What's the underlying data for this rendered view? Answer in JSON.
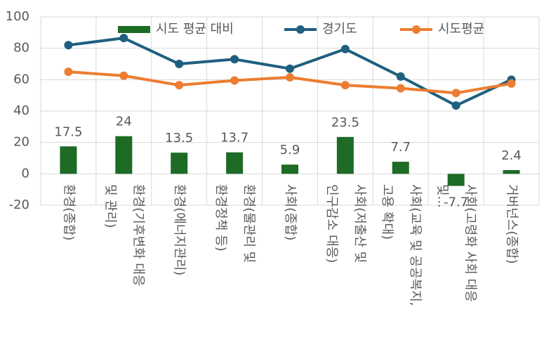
{
  "chart_data": {
    "type": "combo",
    "categories": [
      "환경(종합)",
      "환경(기후변화 대응\n및 관리)",
      "환경(에너지관리)",
      "환경(물관리 및\n환경정책 등)",
      "사회(종합)",
      "사회(저출산 및\n인구감소 대응)",
      "사회(교육 및 공공복지,\n고용 확대)",
      "사회(고령화 사회 대응\n및...",
      "거버넌스(종합)"
    ],
    "series": [
      {
        "name": "시도 평균 대비",
        "type": "bar",
        "color": "#1e6b26",
        "values": [
          17.5,
          24,
          13.5,
          13.7,
          5.9,
          23.5,
          7.7,
          -7.7,
          2.4
        ]
      },
      {
        "name": "경기도",
        "type": "line",
        "color": "#1f5f7f",
        "values": [
          82,
          86.5,
          70,
          73,
          67,
          79.5,
          62,
          43.5,
          60
        ]
      },
      {
        "name": "시도평균",
        "type": "line",
        "color": "#ed7d31",
        "values": [
          65,
          62.5,
          56.5,
          59.5,
          61.5,
          56.5,
          54.5,
          51.5,
          57.5
        ]
      }
    ],
    "ylim": [
      -20,
      100
    ],
    "yticks": [
      -20,
      0,
      20,
      40,
      60,
      80,
      100
    ],
    "grid": true,
    "legend": "top"
  }
}
